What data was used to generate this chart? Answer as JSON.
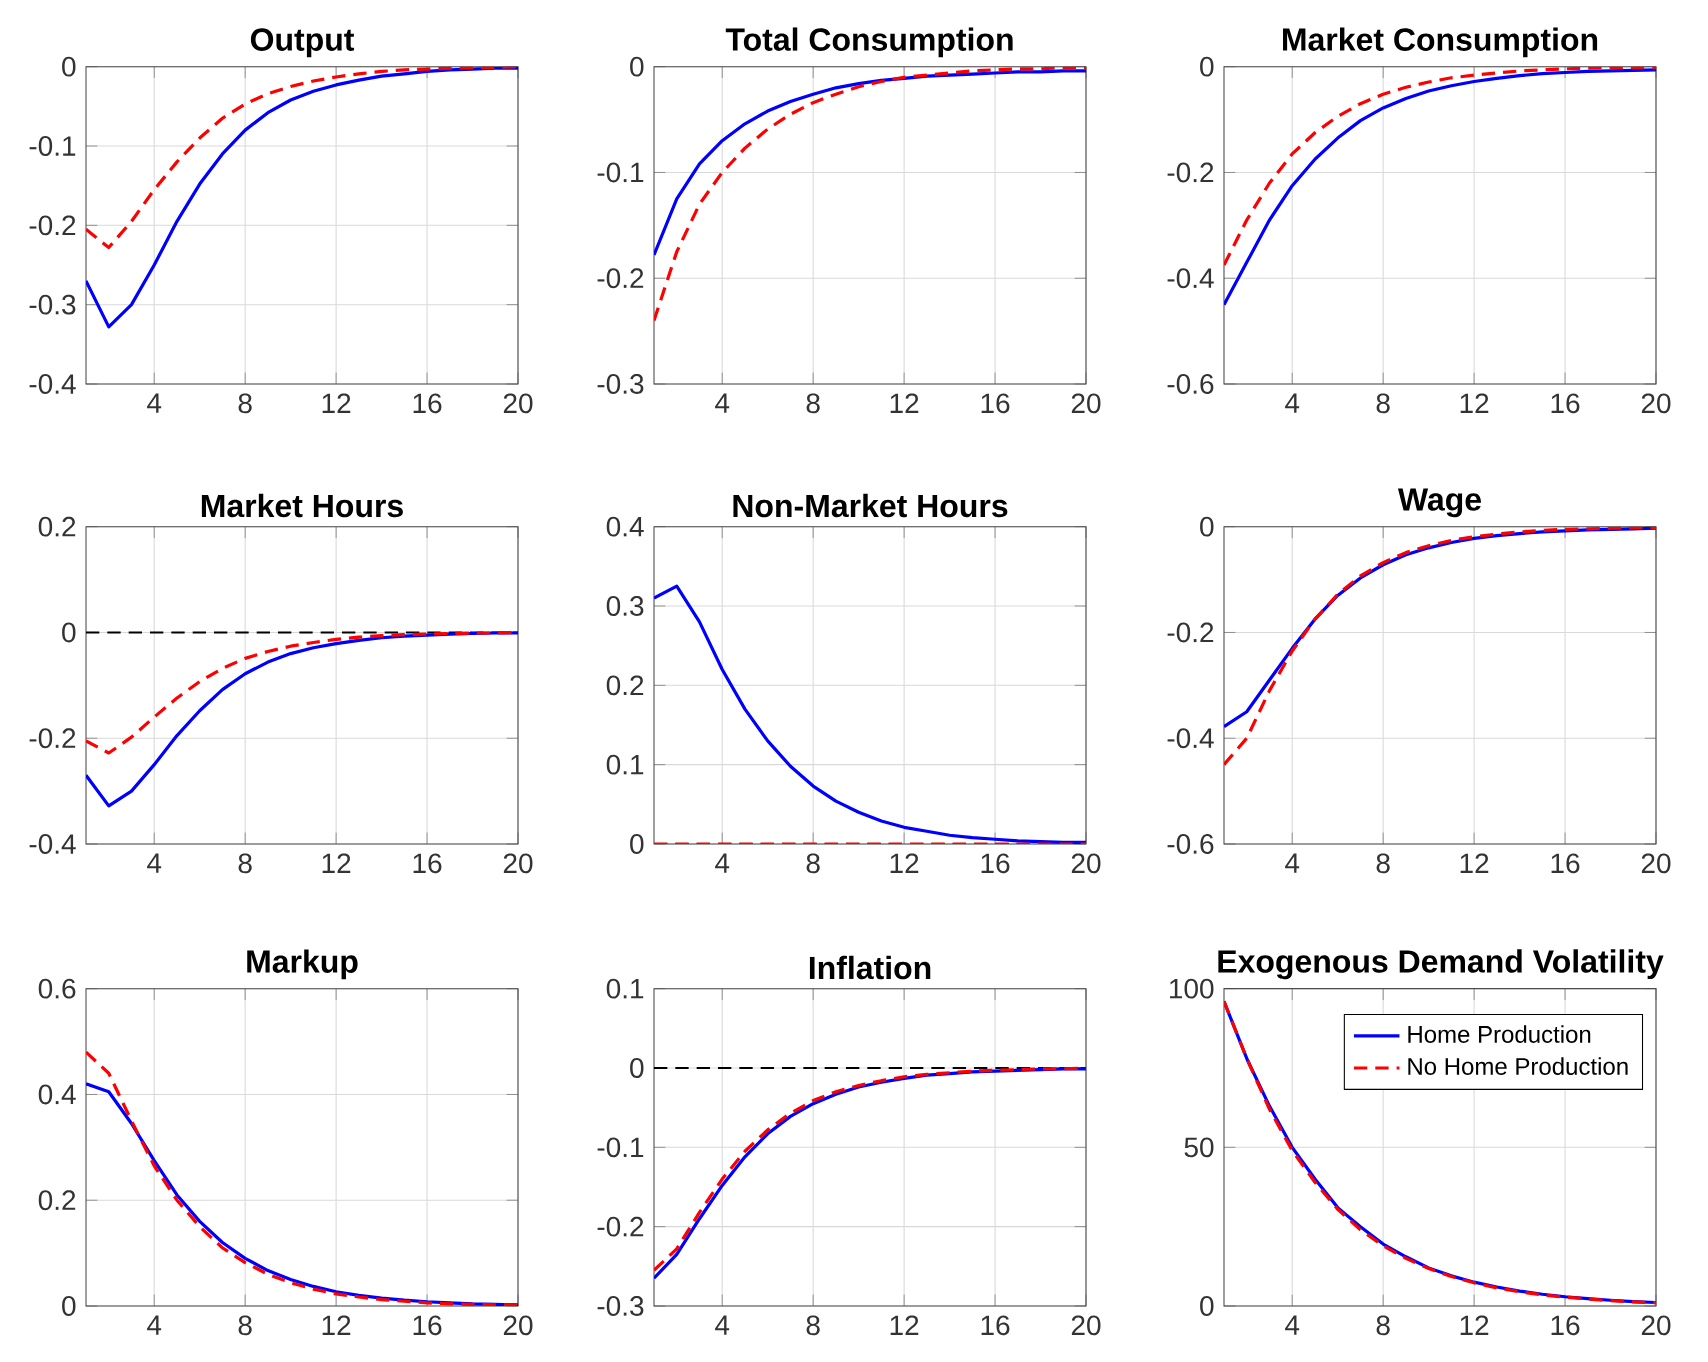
{
  "chart_data": [
    {
      "type": "line",
      "title": "Output",
      "x": [
        1,
        2,
        3,
        4,
        5,
        6,
        7,
        8,
        9,
        10,
        11,
        12,
        13,
        14,
        15,
        16,
        17,
        18,
        19,
        20
      ],
      "xlim": [
        1,
        20
      ],
      "xticks": [
        4,
        8,
        12,
        16,
        20
      ],
      "ylim": [
        -0.4,
        0
      ],
      "yticks": [
        -0.4,
        -0.3,
        -0.2,
        -0.1,
        0
      ],
      "grid": true,
      "series": [
        {
          "color": "#0000ff",
          "line_style": "solid",
          "values": [
            -0.27,
            -0.328,
            -0.3,
            -0.25,
            -0.195,
            -0.148,
            -0.11,
            -0.08,
            -0.058,
            -0.042,
            -0.031,
            -0.023,
            -0.017,
            -0.012,
            -0.009,
            -0.006,
            -0.004,
            -0.003,
            -0.002,
            -0.002
          ]
        },
        {
          "color": "#ff0000",
          "line_style": "dashed",
          "values": [
            -0.205,
            -0.228,
            -0.195,
            -0.155,
            -0.12,
            -0.09,
            -0.065,
            -0.047,
            -0.034,
            -0.025,
            -0.018,
            -0.013,
            -0.009,
            -0.006,
            -0.004,
            -0.003,
            -0.002,
            -0.001,
            -0.001,
            0
          ]
        }
      ]
    },
    {
      "type": "line",
      "title": "Total Consumption",
      "x": [
        1,
        2,
        3,
        4,
        5,
        6,
        7,
        8,
        9,
        10,
        11,
        12,
        13,
        14,
        15,
        16,
        17,
        18,
        19,
        20
      ],
      "xlim": [
        1,
        20
      ],
      "xticks": [
        4,
        8,
        12,
        16,
        20
      ],
      "ylim": [
        -0.3,
        0
      ],
      "yticks": [
        -0.3,
        -0.2,
        -0.1,
        0
      ],
      "grid": true,
      "series": [
        {
          "color": "#0000ff",
          "line_style": "solid",
          "values": [
            -0.178,
            -0.125,
            -0.092,
            -0.07,
            -0.054,
            -0.042,
            -0.033,
            -0.026,
            -0.02,
            -0.016,
            -0.013,
            -0.011,
            -0.009,
            -0.008,
            -0.007,
            -0.006,
            -0.005,
            -0.005,
            -0.004,
            -0.004
          ]
        },
        {
          "color": "#ff0000",
          "line_style": "dashed",
          "values": [
            -0.24,
            -0.175,
            -0.13,
            -0.1,
            -0.077,
            -0.059,
            -0.045,
            -0.034,
            -0.026,
            -0.019,
            -0.014,
            -0.01,
            -0.008,
            -0.006,
            -0.004,
            -0.003,
            -0.002,
            -0.002,
            -0.001,
            -0.001
          ]
        }
      ]
    },
    {
      "type": "line",
      "title": "Market Consumption",
      "x": [
        1,
        2,
        3,
        4,
        5,
        6,
        7,
        8,
        9,
        10,
        11,
        12,
        13,
        14,
        15,
        16,
        17,
        18,
        19,
        20
      ],
      "xlim": [
        1,
        20
      ],
      "xticks": [
        4,
        8,
        12,
        16,
        20
      ],
      "ylim": [
        -0.6,
        0
      ],
      "yticks": [
        -0.6,
        -0.4,
        -0.2,
        0
      ],
      "grid": true,
      "series": [
        {
          "color": "#0000ff",
          "line_style": "solid",
          "values": [
            -0.45,
            -0.37,
            -0.29,
            -0.225,
            -0.175,
            -0.135,
            -0.102,
            -0.078,
            -0.06,
            -0.046,
            -0.036,
            -0.028,
            -0.022,
            -0.017,
            -0.013,
            -0.011,
            -0.009,
            -0.008,
            -0.007,
            -0.006
          ]
        },
        {
          "color": "#ff0000",
          "line_style": "dashed",
          "values": [
            -0.375,
            -0.29,
            -0.22,
            -0.165,
            -0.125,
            -0.094,
            -0.07,
            -0.052,
            -0.039,
            -0.029,
            -0.021,
            -0.016,
            -0.012,
            -0.008,
            -0.006,
            -0.004,
            -0.003,
            -0.002,
            -0.002,
            -0.001
          ]
        }
      ]
    },
    {
      "type": "line",
      "title": "Market Hours",
      "x": [
        1,
        2,
        3,
        4,
        5,
        6,
        7,
        8,
        9,
        10,
        11,
        12,
        13,
        14,
        15,
        16,
        17,
        18,
        19,
        20
      ],
      "xlim": [
        1,
        20
      ],
      "xticks": [
        4,
        8,
        12,
        16,
        20
      ],
      "ylim": [
        -0.4,
        0.2
      ],
      "yticks": [
        -0.4,
        -0.2,
        0,
        0.2
      ],
      "grid": true,
      "ref_lines": [
        {
          "axis": "y",
          "value": 0,
          "color": "#000000",
          "line_style": "dashed"
        }
      ],
      "series": [
        {
          "color": "#0000ff",
          "line_style": "solid",
          "values": [
            -0.27,
            -0.328,
            -0.3,
            -0.25,
            -0.195,
            -0.148,
            -0.108,
            -0.078,
            -0.056,
            -0.04,
            -0.029,
            -0.021,
            -0.015,
            -0.01,
            -0.007,
            -0.005,
            -0.003,
            -0.002,
            -0.001,
            -0.001
          ]
        },
        {
          "color": "#ff0000",
          "line_style": "dashed",
          "values": [
            -0.205,
            -0.228,
            -0.198,
            -0.16,
            -0.124,
            -0.093,
            -0.068,
            -0.049,
            -0.036,
            -0.026,
            -0.019,
            -0.013,
            -0.009,
            -0.006,
            -0.004,
            -0.003,
            -0.002,
            -0.001,
            -0.001,
            0
          ]
        }
      ]
    },
    {
      "type": "line",
      "title": "Non-Market Hours",
      "x": [
        1,
        2,
        3,
        4,
        5,
        6,
        7,
        8,
        9,
        10,
        11,
        12,
        13,
        14,
        15,
        16,
        17,
        18,
        19,
        20
      ],
      "xlim": [
        1,
        20
      ],
      "xticks": [
        4,
        8,
        12,
        16,
        20
      ],
      "ylim": [
        0,
        0.4
      ],
      "yticks": [
        0,
        0.1,
        0.2,
        0.3,
        0.4
      ],
      "grid": true,
      "ref_lines": [
        {
          "axis": "y",
          "value": 0,
          "color": "#000000",
          "line_style": "dashed"
        }
      ],
      "series": [
        {
          "color": "#0000ff",
          "line_style": "solid",
          "values": [
            0.31,
            0.325,
            0.28,
            0.22,
            0.17,
            0.13,
            0.098,
            0.073,
            0.054,
            0.04,
            0.029,
            0.021,
            0.016,
            0.011,
            0.008,
            0.006,
            0.004,
            0.003,
            0.002,
            0.002
          ]
        },
        {
          "color": "#ff0000",
          "line_style": "dashed",
          "values": [
            0,
            0,
            0,
            0,
            0,
            0,
            0,
            0,
            0,
            0,
            0,
            0,
            0,
            0,
            0,
            0,
            0,
            0,
            0,
            0
          ]
        }
      ]
    },
    {
      "type": "line",
      "title": "Wage",
      "x": [
        1,
        2,
        3,
        4,
        5,
        6,
        7,
        8,
        9,
        10,
        11,
        12,
        13,
        14,
        15,
        16,
        17,
        18,
        19,
        20
      ],
      "xlim": [
        1,
        20
      ],
      "xticks": [
        4,
        8,
        12,
        16,
        20
      ],
      "ylim": [
        -0.6,
        0
      ],
      "yticks": [
        -0.6,
        -0.4,
        -0.2,
        0
      ],
      "grid": true,
      "series": [
        {
          "color": "#0000ff",
          "line_style": "solid",
          "values": [
            -0.378,
            -0.35,
            -0.29,
            -0.23,
            -0.175,
            -0.13,
            -0.097,
            -0.072,
            -0.053,
            -0.04,
            -0.03,
            -0.022,
            -0.017,
            -0.013,
            -0.01,
            -0.008,
            -0.006,
            -0.005,
            -0.004,
            -0.003
          ]
        },
        {
          "color": "#ff0000",
          "line_style": "dashed",
          "values": [
            -0.45,
            -0.4,
            -0.31,
            -0.235,
            -0.175,
            -0.128,
            -0.093,
            -0.068,
            -0.049,
            -0.036,
            -0.026,
            -0.019,
            -0.014,
            -0.01,
            -0.007,
            -0.005,
            -0.004,
            -0.003,
            -0.002,
            -0.002
          ]
        }
      ]
    },
    {
      "type": "line",
      "title": "Markup",
      "x": [
        1,
        2,
        3,
        4,
        5,
        6,
        7,
        8,
        9,
        10,
        11,
        12,
        13,
        14,
        15,
        16,
        17,
        18,
        19,
        20
      ],
      "xlim": [
        1,
        20
      ],
      "xticks": [
        4,
        8,
        12,
        16,
        20
      ],
      "ylim": [
        0,
        0.6
      ],
      "yticks": [
        0,
        0.2,
        0.4,
        0.6
      ],
      "grid": true,
      "series": [
        {
          "color": "#0000ff",
          "line_style": "solid",
          "values": [
            0.42,
            0.405,
            0.345,
            0.275,
            0.21,
            0.16,
            0.12,
            0.09,
            0.067,
            0.05,
            0.037,
            0.027,
            0.02,
            0.015,
            0.011,
            0.008,
            0.006,
            0.004,
            0.003,
            0.002
          ]
        },
        {
          "color": "#ff0000",
          "line_style": "dashed",
          "values": [
            0.48,
            0.44,
            0.35,
            0.265,
            0.2,
            0.15,
            0.11,
            0.082,
            0.06,
            0.044,
            0.032,
            0.023,
            0.017,
            0.012,
            0.009,
            0.006,
            0.004,
            0.003,
            0.002,
            0.002
          ]
        }
      ]
    },
    {
      "type": "line",
      "title": "Inflation",
      "x": [
        1,
        2,
        3,
        4,
        5,
        6,
        7,
        8,
        9,
        10,
        11,
        12,
        13,
        14,
        15,
        16,
        17,
        18,
        19,
        20
      ],
      "xlim": [
        1,
        20
      ],
      "xticks": [
        4,
        8,
        12,
        16,
        20
      ],
      "ylim": [
        -0.3,
        0.1
      ],
      "yticks": [
        -0.3,
        -0.2,
        -0.1,
        0,
        0.1
      ],
      "grid": true,
      "ref_lines": [
        {
          "axis": "y",
          "value": 0,
          "color": "#000000",
          "line_style": "dashed"
        }
      ],
      "series": [
        {
          "color": "#0000ff",
          "line_style": "solid",
          "values": [
            -0.265,
            -0.235,
            -0.19,
            -0.148,
            -0.112,
            -0.083,
            -0.061,
            -0.045,
            -0.033,
            -0.024,
            -0.018,
            -0.013,
            -0.009,
            -0.007,
            -0.005,
            -0.004,
            -0.003,
            -0.002,
            -0.001,
            -0.001
          ]
        },
        {
          "color": "#ff0000",
          "line_style": "dashed",
          "values": [
            -0.255,
            -0.228,
            -0.182,
            -0.14,
            -0.105,
            -0.078,
            -0.057,
            -0.041,
            -0.03,
            -0.022,
            -0.016,
            -0.011,
            -0.008,
            -0.006,
            -0.004,
            -0.003,
            -0.002,
            -0.001,
            -0.001,
            0
          ]
        }
      ]
    },
    {
      "type": "line",
      "title": "Exogenous Demand Volatility",
      "x": [
        1,
        2,
        3,
        4,
        5,
        6,
        7,
        8,
        9,
        10,
        11,
        12,
        13,
        14,
        15,
        16,
        17,
        18,
        19,
        20
      ],
      "xlim": [
        1,
        20
      ],
      "xticks": [
        4,
        8,
        12,
        16,
        20
      ],
      "ylim": [
        0,
        100
      ],
      "yticks": [
        0,
        50,
        100
      ],
      "grid": true,
      "legend": "top right",
      "series": [
        {
          "name": "Home Production",
          "color": "#0000ff",
          "line_style": "solid",
          "values": [
            96,
            78,
            63,
            50,
            40,
            31,
            25,
            19.5,
            15.5,
            12,
            9.5,
            7.5,
            6,
            4.7,
            3.7,
            2.9,
            2.3,
            1.8,
            1.4,
            1.1
          ]
        },
        {
          "name": "No Home Production",
          "color": "#ff0000",
          "line_style": "dashed",
          "values": [
            96,
            78,
            62,
            49,
            39,
            30.5,
            24,
            19,
            15,
            11.8,
            9.3,
            7.3,
            5.7,
            4.5,
            3.5,
            2.8,
            2.2,
            1.7,
            1.3,
            1.0
          ]
        }
      ]
    }
  ]
}
